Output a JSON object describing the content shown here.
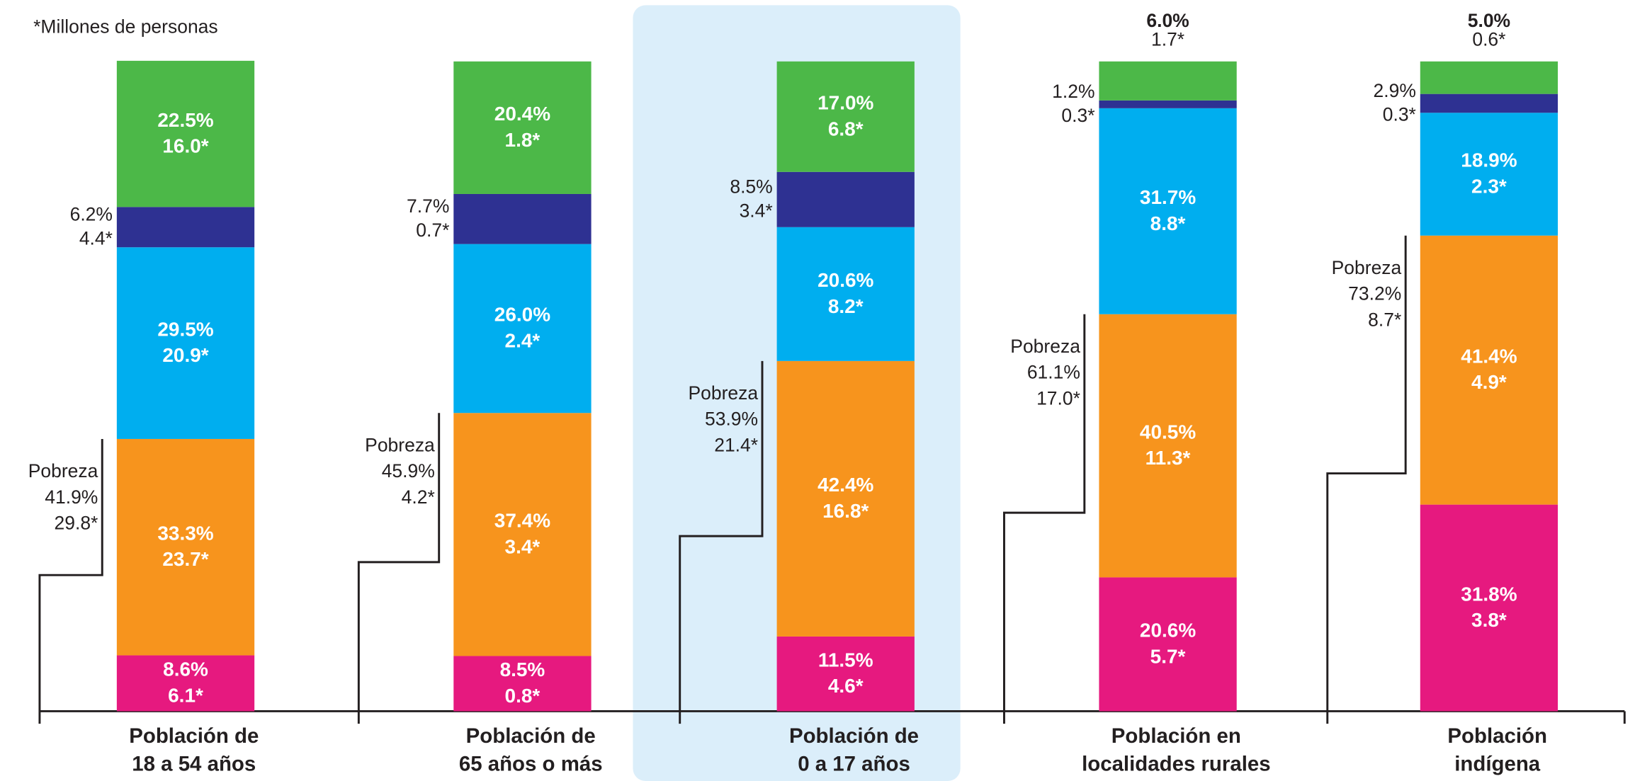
{
  "chart_data": {
    "type": "stacked_bar",
    "note": "*Millones de personas",
    "categories": [
      [
        "Población de",
        "18 a 54 años"
      ],
      [
        "Población de",
        "65 años o más"
      ],
      [
        "Población de",
        "0 a 17 años"
      ],
      [
        "Población en",
        "localidades rurales"
      ],
      [
        "Población",
        "indígena"
      ]
    ],
    "highlight": 2,
    "ylim": [
      0,
      100
    ],
    "series": [
      {
        "color": "#e6197f",
        "values": [
          8.6,
          8.5,
          11.5,
          20.6,
          31.8
        ],
        "value_labels": [
          "8.6%",
          "8.5%",
          "11.5%",
          "20.6%",
          "31.8%"
        ],
        "millions": [
          6.1,
          0.8,
          4.6,
          5.7,
          3.8
        ],
        "millions_labels": [
          "6.1*",
          "0.8*",
          "4.6*",
          "5.7*",
          "3.8*"
        ]
      },
      {
        "color": "#f7941d",
        "values": [
          33.3,
          37.4,
          42.4,
          40.5,
          41.4
        ],
        "value_labels": [
          "33.3%",
          "37.4%",
          "42.4%",
          "40.5%",
          "41.4%"
        ],
        "millions": [
          23.7,
          3.4,
          16.8,
          11.3,
          4.9
        ],
        "millions_labels": [
          "23.7*",
          "3.4*",
          "16.8*",
          "11.3*",
          "4.9*"
        ]
      },
      {
        "color": "#00aeef",
        "values": [
          29.5,
          26.0,
          20.6,
          31.7,
          18.9
        ],
        "value_labels": [
          "29.5%",
          "26.0%",
          "20.6%",
          "31.7%",
          "18.9%"
        ],
        "millions": [
          20.9,
          2.4,
          8.2,
          8.8,
          2.3
        ],
        "millions_labels": [
          "20.9*",
          "2.4*",
          "8.2*",
          "8.8*",
          "2.3*"
        ]
      },
      {
        "color": "#2e3192",
        "values": [
          6.2,
          7.7,
          8.5,
          1.2,
          2.9
        ],
        "value_labels": [
          "6.2%",
          "7.7%",
          "8.5%",
          "1.2%",
          "2.9%"
        ],
        "millions": [
          4.4,
          0.7,
          3.4,
          0.3,
          0.3
        ],
        "millions_labels": [
          "4.4*",
          "0.7*",
          "3.4*",
          "0.3*",
          "0.3*"
        ]
      },
      {
        "color": "#4cb848",
        "values": [
          22.5,
          20.4,
          17.0,
          6.0,
          5.0
        ],
        "value_labels": [
          "22.5%",
          "20.4%",
          "17.0%",
          "6.0%",
          "5.0%"
        ],
        "millions": [
          16.0,
          1.8,
          6.8,
          1.7,
          0.6
        ],
        "millions_labels": [
          "16.0*",
          "1.8*",
          "6.8*",
          "1.7*",
          "0.6*"
        ]
      }
    ],
    "poverty": {
      "label": "Pobreza",
      "values": [
        41.9,
        45.9,
        53.9,
        61.1,
        73.2
      ],
      "value_labels": [
        "41.9%",
        "45.9%",
        "53.9%",
        "61.1%",
        "73.2%"
      ],
      "millions": [
        29.8,
        4.2,
        21.4,
        17.0,
        8.7
      ],
      "millions_labels": [
        "29.8*",
        "4.2*",
        "21.4*",
        "17.0*",
        "8.7*"
      ]
    }
  }
}
